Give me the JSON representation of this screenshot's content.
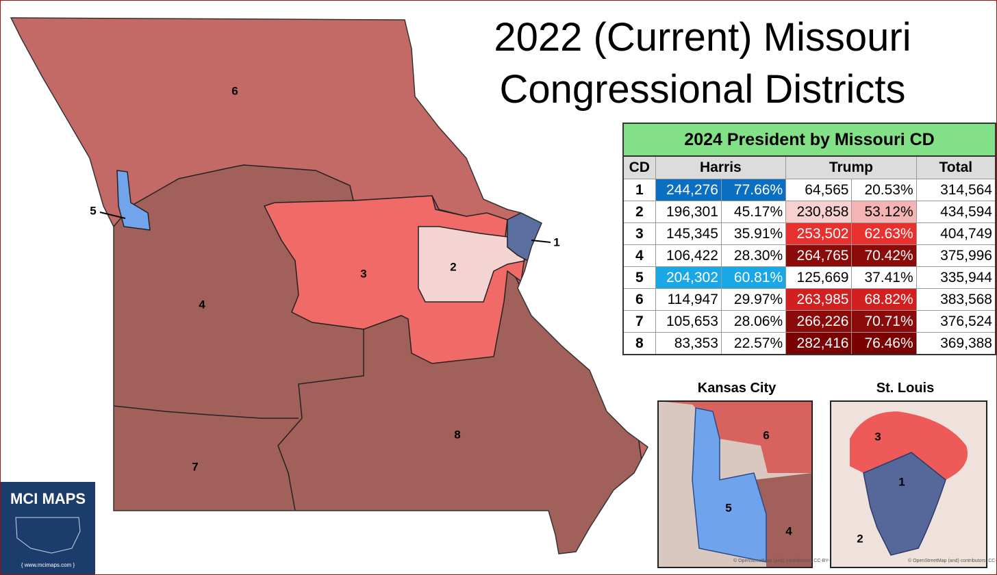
{
  "title": [
    "2022 (Current) Missouri",
    "Congressional Districts"
  ],
  "map": {
    "district_labels": [
      "1",
      "2",
      "3",
      "4",
      "5",
      "6",
      "7",
      "8"
    ]
  },
  "table": {
    "title": "2024 President by Missouri CD",
    "headers": [
      "CD",
      "Harris",
      "Trump",
      "Total"
    ],
    "rows": [
      [
        "1",
        "244,276",
        "77.66%",
        "64,565",
        "20.53%",
        "314,564"
      ],
      [
        "2",
        "196,301",
        "45.17%",
        "230,858",
        "53.12%",
        "434,594"
      ],
      [
        "3",
        "145,345",
        "35.91%",
        "253,502",
        "62.63%",
        "404,749"
      ],
      [
        "4",
        "106,422",
        "28.30%",
        "264,765",
        "70.42%",
        "375,996"
      ],
      [
        "5",
        "204,302",
        "60.81%",
        "125,669",
        "37.41%",
        "335,944"
      ],
      [
        "6",
        "114,947",
        "29.97%",
        "263,985",
        "68.82%",
        "383,568"
      ],
      [
        "7",
        "105,653",
        "28.06%",
        "266,226",
        "70.71%",
        "376,524"
      ],
      [
        "8",
        "83,353",
        "22.57%",
        "282,416",
        "76.46%",
        "369,388"
      ]
    ]
  },
  "insets": [
    {
      "title": "Kansas City",
      "labels": [
        "6",
        "5",
        "4"
      ]
    },
    {
      "title": "St. Louis",
      "labels": [
        "3",
        "1",
        "2"
      ]
    }
  ],
  "attribution": "© OpenStreetMap (and) contributors, CC-BY-SA",
  "logo": {
    "title": "MCI MAPS",
    "url": "{ www.mcimaps.com }"
  }
}
